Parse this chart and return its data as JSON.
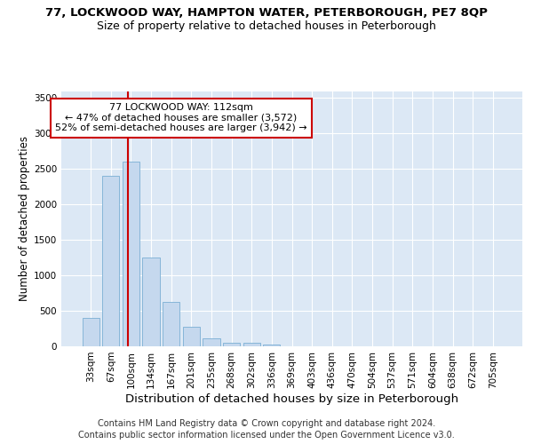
{
  "title1": "77, LOCKWOOD WAY, HAMPTON WATER, PETERBOROUGH, PE7 8QP",
  "title2": "Size of property relative to detached houses in Peterborough",
  "xlabel": "Distribution of detached houses by size in Peterborough",
  "ylabel": "Number of detached properties",
  "categories": [
    "33sqm",
    "67sqm",
    "100sqm",
    "134sqm",
    "167sqm",
    "201sqm",
    "235sqm",
    "268sqm",
    "302sqm",
    "336sqm",
    "369sqm",
    "403sqm",
    "436sqm",
    "470sqm",
    "504sqm",
    "537sqm",
    "571sqm",
    "604sqm",
    "638sqm",
    "672sqm",
    "705sqm"
  ],
  "values": [
    400,
    2400,
    2600,
    1250,
    630,
    270,
    110,
    55,
    50,
    30,
    5,
    0,
    0,
    0,
    0,
    0,
    0,
    0,
    0,
    0,
    0
  ],
  "bar_color": "#c5d8ee",
  "bar_edge_color": "#7aafd4",
  "annotation_text": "77 LOCKWOOD WAY: 112sqm\n← 47% of detached houses are smaller (3,572)\n52% of semi-detached houses are larger (3,942) →",
  "annotation_box_facecolor": "#ffffff",
  "annotation_box_edgecolor": "#cc0000",
  "red_line_color": "#cc0000",
  "ylim": [
    0,
    3600
  ],
  "yticks": [
    0,
    500,
    1000,
    1500,
    2000,
    2500,
    3000,
    3500
  ],
  "footer1": "Contains HM Land Registry data © Crown copyright and database right 2024.",
  "footer2": "Contains public sector information licensed under the Open Government Licence v3.0.",
  "grid_color": "#ffffff",
  "plot_bg_color": "#dce8f5",
  "title1_fontsize": 9.5,
  "title2_fontsize": 9,
  "xlabel_fontsize": 9.5,
  "ylabel_fontsize": 8.5,
  "tick_fontsize": 7.5,
  "annotation_fontsize": 8,
  "footer_fontsize": 7
}
